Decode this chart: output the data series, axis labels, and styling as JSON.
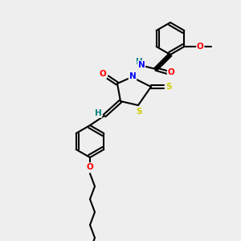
{
  "background_color": "#eeeeee",
  "bond_color": "#000000",
  "atom_colors": {
    "O": "#ff0000",
    "N": "#0000ff",
    "S": "#cccc00",
    "H": "#008080",
    "C": "#000000"
  },
  "figsize": [
    3.0,
    3.0
  ],
  "dpi": 100
}
